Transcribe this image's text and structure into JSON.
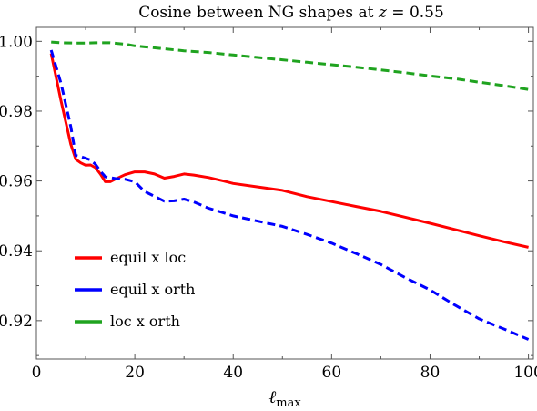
{
  "chart_data": {
    "type": "line",
    "title": "Cosine between NG shapes at z = 0.55",
    "xlabel": "ℓmax",
    "ylabel": "",
    "xlim": [
      0,
      101
    ],
    "ylim": [
      0.909,
      1.004
    ],
    "xticks": [
      0,
      20,
      40,
      60,
      80,
      100
    ],
    "yticks": [
      0.92,
      0.94,
      0.96,
      0.98,
      1.0
    ],
    "xtick_labels": [
      "0",
      "20",
      "40",
      "60",
      "80",
      "100"
    ],
    "ytick_labels": [
      "0.92",
      "0.94",
      "0.96",
      "0.98",
      "1.00"
    ],
    "grid": false,
    "legend_position": "bottom-left",
    "series": [
      {
        "name": "equil x loc",
        "color": "#ff0000",
        "dash": "solid",
        "x": [
          3,
          5,
          7,
          8,
          9,
          10,
          11,
          12,
          13,
          14,
          15,
          16,
          18,
          20,
          22,
          24,
          26,
          28,
          30,
          32,
          35,
          38,
          40,
          45,
          50,
          55,
          60,
          65,
          70,
          75,
          80,
          85,
          90,
          95,
          100
        ],
        "y": [
          0.9965,
          0.983,
          0.9705,
          0.9662,
          0.9652,
          0.9645,
          0.9646,
          0.9638,
          0.962,
          0.9598,
          0.9598,
          0.9605,
          0.9618,
          0.9626,
          0.9626,
          0.962,
          0.9608,
          0.9613,
          0.962,
          0.9617,
          0.961,
          0.96,
          0.9593,
          0.9583,
          0.9573,
          0.9555,
          0.9541,
          0.9527,
          0.9513,
          0.9496,
          0.9479,
          0.9461,
          0.9443,
          0.9426,
          0.941
        ]
      },
      {
        "name": "equil x orth",
        "color": "#0000ff",
        "dash": "dashed",
        "x": [
          3,
          5,
          7,
          8,
          9,
          10,
          11,
          12,
          13,
          14,
          15,
          16,
          18,
          20,
          22,
          24,
          26,
          28,
          30,
          32,
          35,
          38,
          40,
          45,
          50,
          55,
          60,
          65,
          70,
          75,
          80,
          85,
          90,
          95,
          100
        ],
        "y": [
          0.9975,
          0.988,
          0.9755,
          0.9673,
          0.967,
          0.9665,
          0.966,
          0.9648,
          0.9628,
          0.9612,
          0.961,
          0.9607,
          0.9605,
          0.9598,
          0.957,
          0.9556,
          0.9542,
          0.9543,
          0.9548,
          0.954,
          0.9522,
          0.9509,
          0.95,
          0.9485,
          0.947,
          0.9447,
          0.9422,
          0.9392,
          0.9361,
          0.9323,
          0.9288,
          0.9245,
          0.9205,
          0.9176,
          0.9146
        ]
      },
      {
        "name": "loc x orth",
        "color": "#1fa31f",
        "dash": "dashed",
        "x": [
          3,
          5,
          8,
          10,
          12,
          15,
          18,
          20,
          25,
          30,
          35,
          40,
          45,
          50,
          55,
          60,
          65,
          70,
          75,
          80,
          85,
          90,
          95,
          100
        ],
        "y": [
          0.9998,
          0.9996,
          0.9995,
          0.9995,
          0.9996,
          0.9996,
          0.9992,
          0.9987,
          0.998,
          0.9973,
          0.9968,
          0.9961,
          0.9954,
          0.9947,
          0.994,
          0.9933,
          0.9926,
          0.9918,
          0.991,
          0.9901,
          0.9893,
          0.9883,
          0.9873,
          0.9862
        ]
      }
    ]
  }
}
